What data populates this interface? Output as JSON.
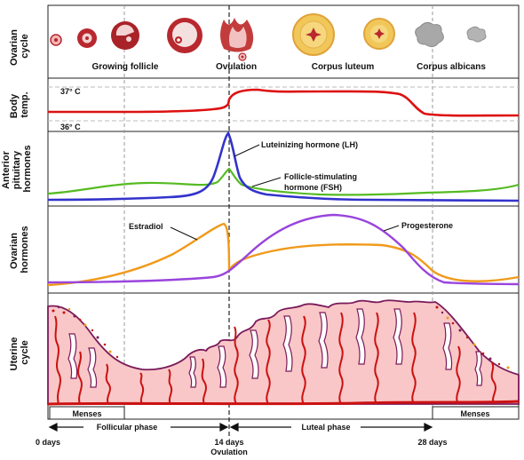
{
  "rows": {
    "ovarian_cycle": [
      "Ovarian",
      "cycle"
    ],
    "body_temp": [
      "Body",
      "temp."
    ],
    "anterior_pituitary": [
      "Anterior",
      "pituitary",
      "hormones"
    ],
    "ovarian_hormones": [
      "Ovarian",
      "hormones"
    ],
    "uterine_cycle": [
      "Uterine",
      "cycle"
    ]
  },
  "ovarian_stages": {
    "growing_follicle": "Growing follicle",
    "ovulation": "Ovulation",
    "corpus_luteum": "Corpus luteum",
    "corpus_albicans": "Corpus albicans"
  },
  "temperature": {
    "high": "37° C",
    "low": "36° C"
  },
  "pituitary": {
    "lh": "Luteinizing hormone (LH)",
    "fsh_line1": "Follicle-stimulating",
    "fsh_line2": "hormone (FSH)"
  },
  "ovarian": {
    "estradiol": "Estradiol",
    "progesterone": "Progesterone"
  },
  "uterine": {
    "menses_left": "Menses",
    "menses_right": "Menses"
  },
  "phases": {
    "follicular": "Follicular phase",
    "luteal": "Luteal phase"
  },
  "timeline": {
    "day0": "0 days",
    "day14": "14 days",
    "day14_sub": "Ovulation",
    "day28": "28 days"
  },
  "colors": {
    "temp_line": "#dd1111",
    "lh_line": "#3333cc",
    "fsh_line": "#55bb22",
    "estradiol_line": "#f09a1a",
    "progesterone_line": "#9944dd",
    "endometrium_fill": "#f9c7c7",
    "endometrium_edge": "#7a1a5a",
    "vessel": "#cc1111",
    "follicle": "#b8282e",
    "corpus_luteum": "#f2c75a",
    "corpus_albicans": "#a8a8a8"
  }
}
